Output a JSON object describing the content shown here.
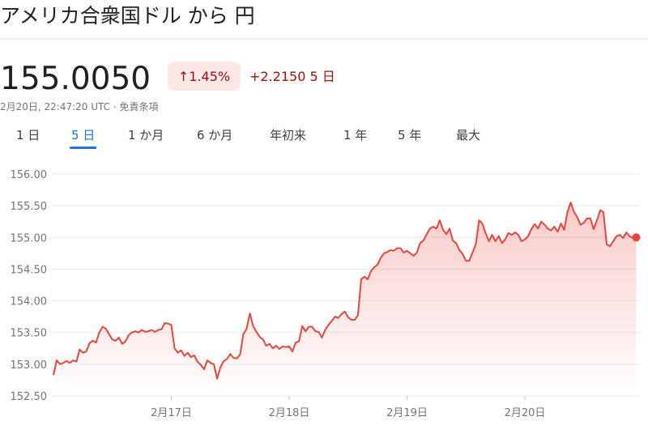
{
  "header": {
    "title": "アメリカ合衆国ドル から 円",
    "price": "155.0050",
    "change_percent": "↑1.45%",
    "change": "+2.2150 5 日",
    "timestamp": "2月20日, 22:47:20 UTC · 免責条項"
  },
  "tabs": {
    "items": [
      "1 日",
      "5 日",
      "1 か月",
      "6 か月",
      "年初来",
      "1 年",
      "5 年",
      "最大"
    ],
    "selected": 1
  },
  "chart_data": {
    "type": "line",
    "color": "#e8453c",
    "grid": true,
    "xlim": [
      0,
      7200
    ],
    "xticks": [
      {
        "value": 1440,
        "label": "2月17日"
      },
      {
        "value": 2880,
        "label": "2月18日"
      },
      {
        "value": 4320,
        "label": "2月19日"
      },
      {
        "value": 5760,
        "label": "2月20日"
      }
    ],
    "ylim": [
      152.5,
      156
    ],
    "yticks": [
      {
        "value": 152.5,
        "label": "152.50"
      },
      {
        "value": 153,
        "label": "153.00"
      },
      {
        "value": 153.5,
        "label": "153.50"
      },
      {
        "value": 154,
        "label": "154.00"
      },
      {
        "value": 154.5,
        "label": "154.50"
      },
      {
        "value": 155,
        "label": "155.00"
      },
      {
        "value": 155.5,
        "label": "155.50"
      },
      {
        "value": 156,
        "label": "156.00"
      }
    ],
    "x": [
      0,
      40,
      80,
      120,
      160,
      200,
      240,
      280,
      320,
      360,
      400,
      440,
      480,
      520,
      560,
      600,
      640,
      680,
      720,
      760,
      800,
      840,
      880,
      920,
      960,
      1000,
      1040,
      1080,
      1120,
      1160,
      1200,
      1240,
      1280,
      1320,
      1360,
      1400,
      1440,
      1480,
      1520,
      1560,
      1600,
      1640,
      1680,
      1720,
      1760,
      1800,
      1840,
      1880,
      1920,
      1960,
      2000,
      2040,
      2080,
      2120,
      2160,
      2200,
      2240,
      2280,
      2320,
      2360,
      2400,
      2440,
      2480,
      2520,
      2560,
      2600,
      2640,
      2680,
      2720,
      2760,
      2800,
      2840,
      2880,
      2920,
      2960,
      3000,
      3040,
      3080,
      3120,
      3160,
      3200,
      3240,
      3280,
      3320,
      3360,
      3400,
      3440,
      3480,
      3520,
      3560,
      3600,
      3640,
      3680,
      3720,
      3760,
      3800,
      3840,
      3880,
      3920,
      3960,
      4000,
      4040,
      4080,
      4120,
      4160,
      4200,
      4240,
      4280,
      4320,
      4360,
      4400,
      4440,
      4480,
      4520,
      4560,
      4600,
      4640,
      4680,
      4720,
      4760,
      4800,
      4840,
      4880,
      4920,
      4960,
      5000,
      5040,
      5080,
      5120,
      5160,
      5200,
      5240,
      5280,
      5320,
      5360,
      5400,
      5440,
      5480,
      5520,
      5560,
      5600,
      5640,
      5680,
      5720,
      5760,
      5800,
      5840,
      5880,
      5920,
      5960,
      6000,
      6040,
      6080,
      6120,
      6160,
      6200,
      6240,
      6280,
      6320,
      6360,
      6400,
      6440,
      6480,
      6520,
      6560,
      6600,
      6640,
      6680,
      6720,
      6760,
      6800,
      6840,
      6880,
      6920,
      6960,
      7000,
      7040,
      7080,
      7120
    ],
    "values": [
      152.83,
      153.06,
      153.0,
      153.02,
      153.05,
      153.02,
      153.06,
      153.04,
      153.23,
      153.18,
      153.2,
      153.33,
      153.37,
      153.34,
      153.5,
      153.59,
      153.56,
      153.47,
      153.39,
      153.37,
      153.42,
      153.32,
      153.36,
      153.46,
      153.5,
      153.52,
      153.5,
      153.54,
      153.51,
      153.52,
      153.54,
      153.51,
      153.54,
      153.55,
      153.65,
      153.64,
      153.62,
      153.25,
      153.18,
      153.22,
      153.13,
      153.18,
      153.11,
      153.14,
      153.04,
      152.99,
      152.92,
      153.06,
      153.02,
      153.0,
      152.77,
      152.95,
      153.05,
      153.08,
      153.16,
      153.1,
      153.09,
      153.15,
      153.47,
      153.56,
      153.8,
      153.6,
      153.51,
      153.43,
      153.39,
      153.29,
      153.32,
      153.25,
      153.29,
      153.24,
      153.28,
      153.27,
      153.28,
      153.2,
      153.34,
      153.36,
      153.6,
      153.52,
      153.59,
      153.59,
      153.52,
      153.51,
      153.42,
      153.54,
      153.62,
      153.68,
      153.75,
      153.73,
      153.79,
      153.83,
      153.74,
      153.7,
      153.7,
      153.77,
      154.34,
      154.38,
      154.34,
      154.47,
      154.53,
      154.57,
      154.68,
      154.75,
      154.77,
      154.8,
      154.79,
      154.83,
      154.83,
      154.76,
      154.79,
      154.75,
      154.71,
      154.76,
      154.91,
      154.95,
      155.05,
      155.14,
      155.17,
      155.14,
      155.27,
      155.12,
      155.05,
      155.14,
      154.95,
      154.91,
      154.8,
      154.74,
      154.63,
      154.63,
      154.76,
      154.89,
      155.27,
      155.22,
      155.07,
      154.94,
      155.04,
      154.94,
      155.02,
      154.91,
      154.97,
      155.07,
      155.04,
      155.08,
      155.04,
      154.94,
      154.97,
      155.02,
      155.13,
      155.21,
      155.14,
      155.25,
      155.2,
      155.14,
      155.11,
      155.17,
      155.09,
      155.22,
      155.12,
      155.4,
      155.55,
      155.4,
      155.32,
      155.2,
      155.23,
      155.3,
      155.3,
      155.13,
      155.27,
      155.43,
      155.4,
      154.89,
      154.86,
      154.94,
      155.02,
      155.04,
      154.99,
      155.08,
      155.02,
      154.99,
      155.0
    ]
  }
}
